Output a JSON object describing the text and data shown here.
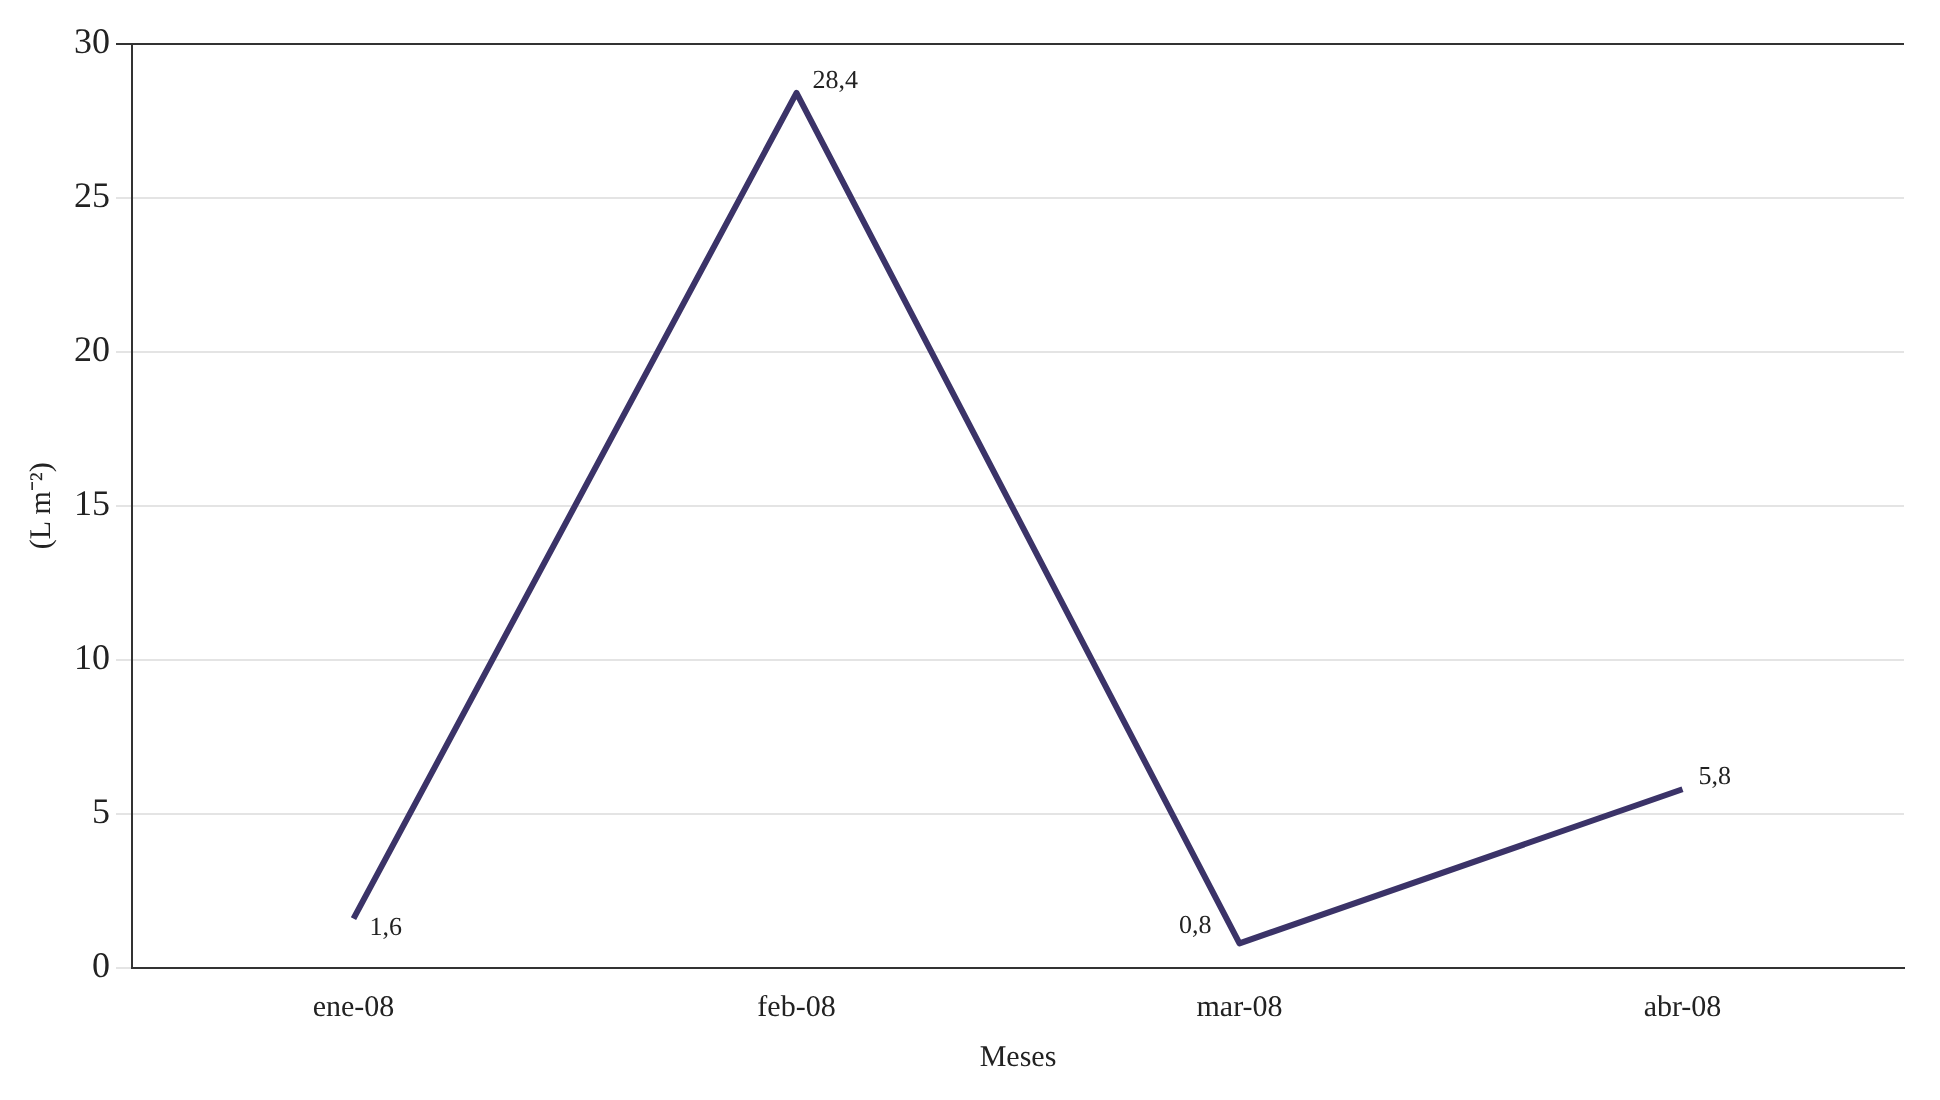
{
  "chart_data": {
    "type": "line",
    "xlabel": "Meses",
    "ylabel": "(L m⁻²)",
    "categories": [
      "ene-08",
      "feb-08",
      "mar-08",
      "abr-08"
    ],
    "series": [
      {
        "color": "#3b3368",
        "values": [
          1.6,
          28.4,
          0.8,
          5.8
        ],
        "value_labels": [
          "1,6",
          "28,4",
          "0,8",
          "5,8"
        ]
      }
    ],
    "ylim": [
      0,
      30
    ],
    "yticks": [
      0,
      5,
      10,
      15,
      20,
      25,
      30
    ],
    "grid": "y",
    "legend": false,
    "marker": "none",
    "line_style": "solid"
  }
}
